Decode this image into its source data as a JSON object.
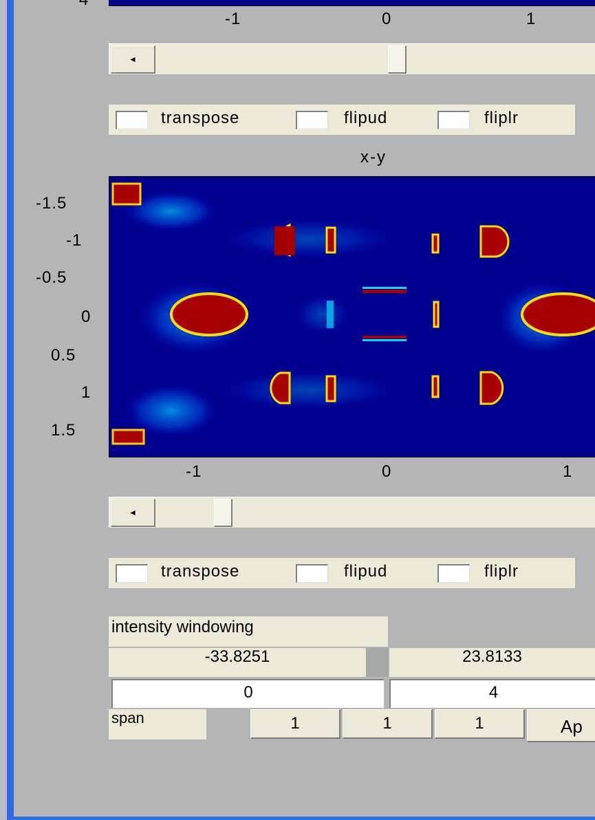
{
  "top_plot": {
    "y_tick_partial": "4",
    "x_ticks": [
      "-1",
      "0",
      "1"
    ]
  },
  "slider1": {
    "arrow": "◄",
    "position_fraction": 0.55
  },
  "checks1": {
    "labels": [
      "transpose",
      "flipud",
      "fliplr"
    ]
  },
  "xy_plot": {
    "title": "x-y",
    "y_ticks": [
      "-1.5",
      "-1",
      "-0.5",
      "0",
      "0.5",
      "1",
      "1.5"
    ],
    "x_ticks": [
      "-1",
      "0",
      "1"
    ]
  },
  "slider2": {
    "arrow": "◄",
    "position_fraction": 0.14
  },
  "checks2": {
    "labels": [
      "transpose",
      "flipud",
      "fliplr"
    ]
  },
  "intensity": {
    "label": "intensity windowing",
    "min_value": "-33.8251",
    "max_value": "23.8133",
    "low": "0",
    "high": "4"
  },
  "span": {
    "label": "span",
    "values": [
      "1",
      "1",
      "1"
    ],
    "apply_label": "Ap"
  },
  "colors": {
    "background": "#b5b5b5",
    "panel": "#ece9d8",
    "plot_bg": "#00008f",
    "hot": "#a80000",
    "frame": "#2f6be6"
  }
}
